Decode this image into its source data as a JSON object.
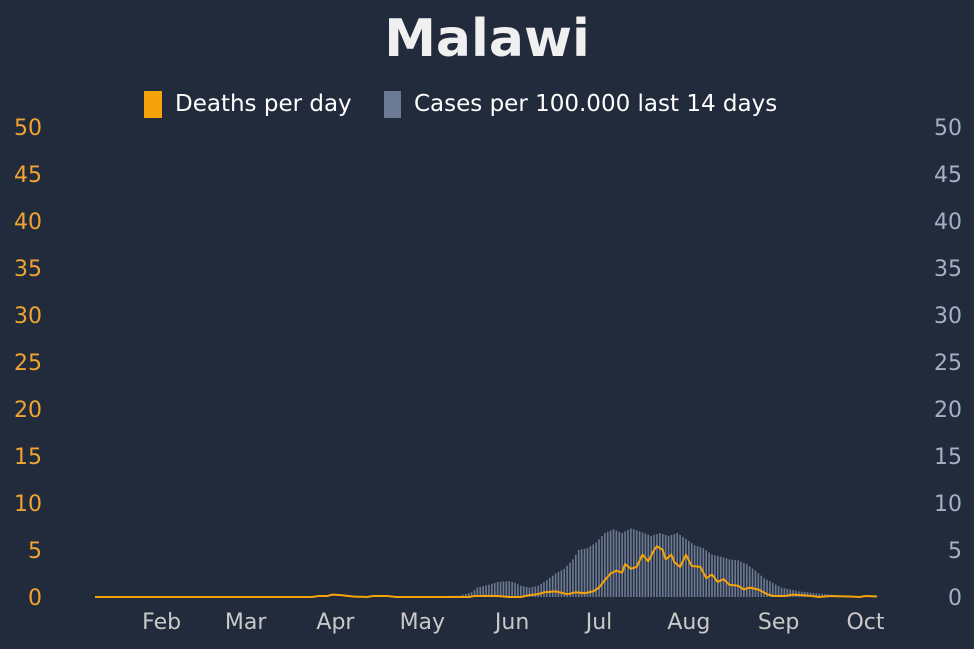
{
  "chart_data": {
    "type": "bar",
    "title": "Malawi",
    "background": "#222b3b",
    "title_color": "#f0f0f0",
    "legend_position": "top-center",
    "x_months": [
      "Feb",
      "Mar",
      "Apr",
      "May",
      "Jun",
      "Jul",
      "Aug",
      "Sep",
      "Oct"
    ],
    "x_range": [
      "2020-01-23",
      "2020-10-20"
    ],
    "y_left": {
      "ticks": [
        "0",
        "5",
        "10",
        "15",
        "20",
        "25",
        "30",
        "35",
        "40",
        "45",
        "50"
      ],
      "range": [
        0,
        50
      ],
      "color": "#f0a431"
    },
    "y_right": {
      "ticks": [
        "0",
        "5",
        "10",
        "15",
        "20",
        "25",
        "30",
        "35",
        "40",
        "45",
        "50"
      ],
      "range": [
        0,
        50
      ],
      "color": "#a3b0c8"
    },
    "grid": false,
    "series": [
      {
        "name": "Deaths per day",
        "kind": "line",
        "color": "#f5a30a",
        "points": [
          [
            "2020-01-23",
            0
          ],
          [
            "2020-04-07",
            0
          ],
          [
            "2020-04-09",
            0.1
          ],
          [
            "2020-04-12",
            0.1
          ],
          [
            "2020-04-14",
            0.25
          ],
          [
            "2020-04-17",
            0.2
          ],
          [
            "2020-04-21",
            0.05
          ],
          [
            "2020-04-26",
            0
          ],
          [
            "2020-04-28",
            0.1
          ],
          [
            "2020-05-03",
            0.1
          ],
          [
            "2020-05-06",
            0
          ],
          [
            "2020-05-31",
            0
          ],
          [
            "2020-06-02",
            0.1
          ],
          [
            "2020-06-10",
            0.1
          ],
          [
            "2020-06-14",
            0
          ],
          [
            "2020-06-18",
            0
          ],
          [
            "2020-06-21",
            0.2
          ],
          [
            "2020-06-24",
            0.3
          ],
          [
            "2020-06-26",
            0.5
          ],
          [
            "2020-06-30",
            0.6
          ],
          [
            "2020-07-04",
            0.3
          ],
          [
            "2020-07-07",
            0.5
          ],
          [
            "2020-07-10",
            0.4
          ],
          [
            "2020-07-13",
            0.6
          ],
          [
            "2020-07-15",
            1.0
          ],
          [
            "2020-07-17",
            1.8
          ],
          [
            "2020-07-19",
            2.5
          ],
          [
            "2020-07-21",
            2.8
          ],
          [
            "2020-07-23",
            2.6
          ],
          [
            "2020-07-24",
            3.5
          ],
          [
            "2020-07-26",
            3.0
          ],
          [
            "2020-07-28",
            3.2
          ],
          [
            "2020-07-30",
            4.5
          ],
          [
            "2020-08-01",
            3.8
          ],
          [
            "2020-08-03",
            5.0
          ],
          [
            "2020-08-04",
            5.4
          ],
          [
            "2020-08-06",
            5.0
          ],
          [
            "2020-08-07",
            4.0
          ],
          [
            "2020-08-09",
            4.5
          ],
          [
            "2020-08-10",
            3.7
          ],
          [
            "2020-08-12",
            3.2
          ],
          [
            "2020-08-14",
            4.5
          ],
          [
            "2020-08-16",
            3.3
          ],
          [
            "2020-08-19",
            3.2
          ],
          [
            "2020-08-21",
            2.0
          ],
          [
            "2020-08-23",
            2.4
          ],
          [
            "2020-08-25",
            1.6
          ],
          [
            "2020-08-27",
            1.9
          ],
          [
            "2020-08-29",
            1.3
          ],
          [
            "2020-09-01",
            1.2
          ],
          [
            "2020-09-03",
            0.8
          ],
          [
            "2020-09-05",
            1.0
          ],
          [
            "2020-09-08",
            0.8
          ],
          [
            "2020-09-11",
            0.3
          ],
          [
            "2020-09-13",
            0.1
          ],
          [
            "2020-09-17",
            0.1
          ],
          [
            "2020-09-20",
            0.25
          ],
          [
            "2020-09-25",
            0.15
          ],
          [
            "2020-09-29",
            0
          ],
          [
            "2020-10-03",
            0.1
          ],
          [
            "2020-10-10",
            0.05
          ],
          [
            "2020-10-13",
            0
          ],
          [
            "2020-10-15",
            0.1
          ],
          [
            "2020-10-19",
            0.05
          ]
        ]
      },
      {
        "name": "Cases per 100.000 last 14 days",
        "kind": "bar",
        "color": "#6d7a93",
        "axis": "right",
        "points": [
          [
            "2020-04-01",
            0
          ],
          [
            "2020-05-15",
            0.05
          ],
          [
            "2020-05-28",
            0.15
          ],
          [
            "2020-06-01",
            0.5
          ],
          [
            "2020-06-03",
            1.0
          ],
          [
            "2020-06-07",
            1.3
          ],
          [
            "2020-06-10",
            1.6
          ],
          [
            "2020-06-14",
            1.7
          ],
          [
            "2020-06-16",
            1.5
          ],
          [
            "2020-06-18",
            1.2
          ],
          [
            "2020-06-21",
            1.0
          ],
          [
            "2020-06-24",
            1.2
          ],
          [
            "2020-06-27",
            1.8
          ],
          [
            "2020-06-30",
            2.5
          ],
          [
            "2020-07-03",
            3.0
          ],
          [
            "2020-07-06",
            4.0
          ],
          [
            "2020-07-08",
            5.0
          ],
          [
            "2020-07-11",
            5.2
          ],
          [
            "2020-07-14",
            5.8
          ],
          [
            "2020-07-17",
            6.8
          ],
          [
            "2020-07-20",
            7.2
          ],
          [
            "2020-07-23",
            6.8
          ],
          [
            "2020-07-26",
            7.3
          ],
          [
            "2020-07-29",
            7.0
          ],
          [
            "2020-08-02",
            6.5
          ],
          [
            "2020-08-05",
            6.8
          ],
          [
            "2020-08-08",
            6.5
          ],
          [
            "2020-08-11",
            6.8
          ],
          [
            "2020-08-14",
            6.2
          ],
          [
            "2020-08-17",
            5.5
          ],
          [
            "2020-08-20",
            5.2
          ],
          [
            "2020-08-23",
            4.5
          ],
          [
            "2020-08-26",
            4.3
          ],
          [
            "2020-08-29",
            4.0
          ],
          [
            "2020-09-01",
            3.9
          ],
          [
            "2020-09-04",
            3.5
          ],
          [
            "2020-09-07",
            2.8
          ],
          [
            "2020-09-10",
            2.0
          ],
          [
            "2020-09-13",
            1.5
          ],
          [
            "2020-09-16",
            1.0
          ],
          [
            "2020-09-19",
            0.8
          ],
          [
            "2020-09-22",
            0.6
          ],
          [
            "2020-09-25",
            0.5
          ],
          [
            "2020-09-28",
            0.4
          ],
          [
            "2020-10-01",
            0.3
          ],
          [
            "2020-10-05",
            0.2
          ],
          [
            "2020-10-10",
            0.1
          ],
          [
            "2020-10-15",
            0.05
          ],
          [
            "2020-10-20",
            0
          ]
        ]
      }
    ]
  }
}
